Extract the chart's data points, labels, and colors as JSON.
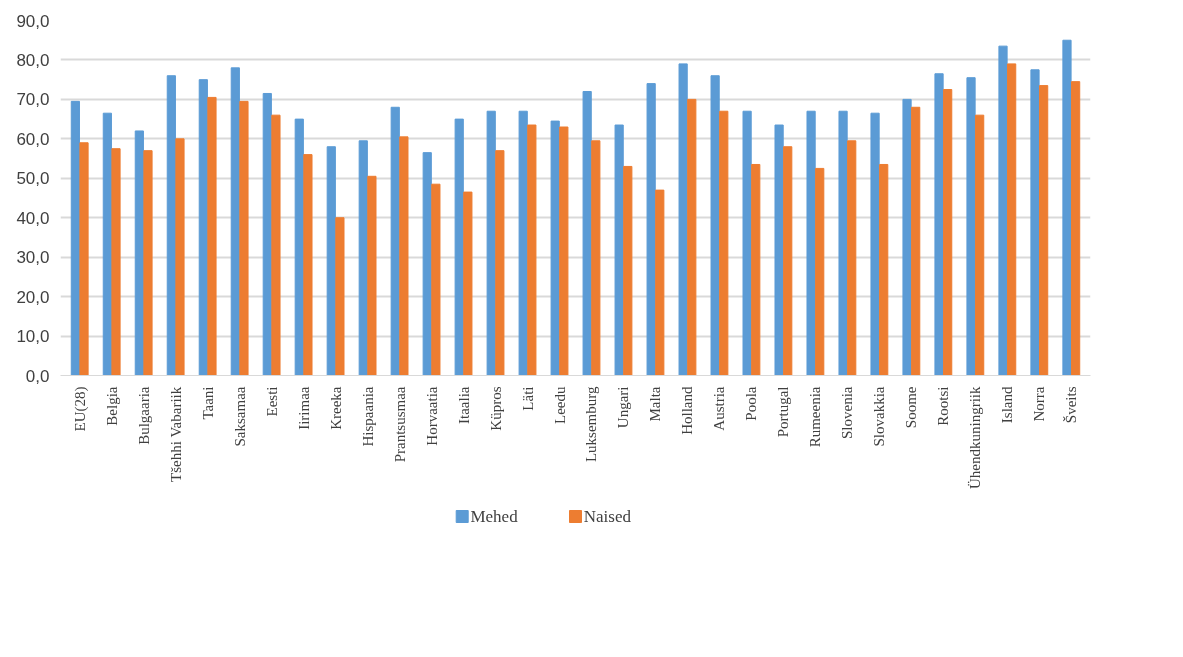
{
  "chart_data": {
    "type": "bar",
    "categories": [
      "EU(28)",
      "Belgia",
      "Bulgaaria",
      "Tšehhi Vabariik",
      "Taani",
      "Saksamaa",
      "Eesti",
      "Iirimaa",
      "Kreeka",
      "Hispaania",
      "Prantsusmaa",
      "Horvaatia",
      "Itaalia",
      "Küpros",
      "Läti",
      "Leedu",
      "Luksemburg",
      "Ungari",
      "Malta",
      "Holland",
      "Austria",
      "Poola",
      "Portugal",
      "Rumeenia",
      "Slovenia",
      "Slovakkia",
      "Soome",
      "Rootsi",
      "Ühendkuningriik",
      "Island",
      "Norra",
      "Šveits"
    ],
    "series": [
      {
        "name": "Mehed",
        "color": "#5b9bd5",
        "values": [
          69.5,
          66.5,
          62,
          76,
          75,
          78,
          71.5,
          65,
          58,
          59.5,
          68,
          56.5,
          65,
          67,
          67,
          64.5,
          72,
          63.5,
          74,
          79,
          76,
          67,
          63.5,
          67,
          67,
          66.5,
          70,
          76.5,
          75.5,
          83.5,
          77.5,
          85
        ]
      },
      {
        "name": "Naised",
        "color": "#ed7d31",
        "values": [
          59,
          57.5,
          57,
          60,
          70.5,
          69.5,
          66,
          56,
          40,
          50.5,
          60.5,
          48.5,
          46.5,
          57,
          63.5,
          63,
          59.5,
          53,
          47,
          70,
          67,
          53.5,
          58,
          52.5,
          59.5,
          53.5,
          68,
          72.5,
          66,
          79,
          73.5,
          74.5
        ]
      }
    ],
    "ylim": [
      0,
      90
    ],
    "yticks": [
      {
        "value": 0,
        "label": "0,0"
      },
      {
        "value": 10,
        "label": "10,0"
      },
      {
        "value": 20,
        "label": "20,0"
      },
      {
        "value": 30,
        "label": "30,0"
      },
      {
        "value": 40,
        "label": "40,0"
      },
      {
        "value": 50,
        "label": "50,0"
      },
      {
        "value": 60,
        "label": "60,0"
      },
      {
        "value": 70,
        "label": "70,0"
      },
      {
        "value": 80,
        "label": "80,0"
      },
      {
        "value": 90,
        "label": "90,0"
      }
    ],
    "grid": "y",
    "legend": "bottom"
  }
}
